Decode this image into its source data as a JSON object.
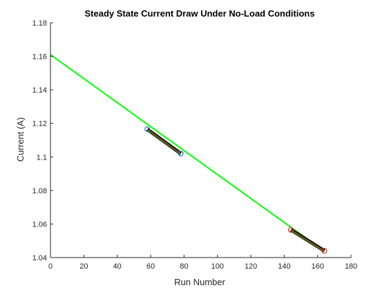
{
  "chart_data": {
    "type": "line",
    "title": "Steady State Current Draw Under No-Load Conditions",
    "xlabel": "Run Number",
    "ylabel": "Current (A)",
    "xlim": [
      0,
      180
    ],
    "ylim": [
      1.04,
      1.18
    ],
    "xticks": [
      "0",
      "20",
      "40",
      "60",
      "80",
      "100",
      "120",
      "140",
      "160",
      "180"
    ],
    "yticks": [
      "1.04",
      "1.06",
      "1.08",
      "1.1",
      "1.12",
      "1.14",
      "1.16",
      "1.18"
    ],
    "grid": false,
    "series": [
      {
        "kind": "fit-line",
        "color": "#00ff00",
        "x": [
          0,
          163
        ],
        "y": [
          1.161,
          1.0445
        ]
      },
      {
        "kind": "segment",
        "color": "#000000",
        "fill": "#8b4513",
        "marker": "circle",
        "marker_color": "#1f77b4",
        "x": [
          58,
          78
        ],
        "y": [
          1.1165,
          1.102
        ]
      },
      {
        "kind": "segment",
        "color": "#000000",
        "fill": "#8b4513",
        "marker": "circle",
        "marker_color": "#d62728",
        "x": [
          144,
          164
        ],
        "y": [
          1.0565,
          1.044
        ]
      }
    ]
  }
}
